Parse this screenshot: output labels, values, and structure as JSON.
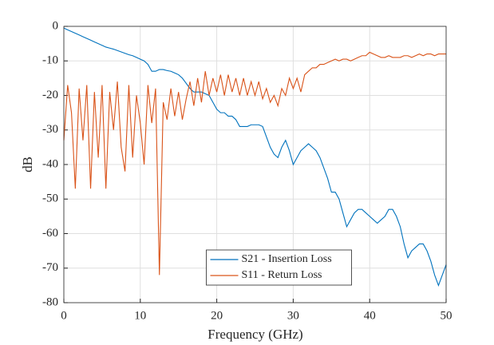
{
  "chart_data": {
    "type": "line",
    "xlabel": "Frequency (GHz)",
    "ylabel": "dB",
    "x": [
      0,
      0.5,
      1,
      1.5,
      2,
      2.5,
      3,
      3.5,
      4,
      4.5,
      5,
      5.5,
      6,
      6.5,
      7,
      7.5,
      8,
      8.5,
      9,
      9.5,
      10,
      10.5,
      11,
      11.5,
      12,
      12.5,
      13,
      13.5,
      14,
      14.5,
      15,
      15.5,
      16,
      16.5,
      17,
      17.5,
      18,
      18.5,
      19,
      19.5,
      20,
      20.5,
      21,
      21.5,
      22,
      22.5,
      23,
      23.5,
      24,
      24.5,
      25,
      25.5,
      26,
      26.5,
      27,
      27.5,
      28,
      28.5,
      29,
      29.5,
      30,
      30.5,
      31,
      31.5,
      32,
      32.5,
      33,
      33.5,
      34,
      34.5,
      35,
      35.5,
      36,
      36.5,
      37,
      37.5,
      38,
      38.5,
      39,
      39.5,
      40,
      40.5,
      41,
      41.5,
      42,
      42.5,
      43,
      43.5,
      44,
      44.5,
      45,
      45.5,
      46,
      46.5,
      47,
      47.5,
      48,
      48.5,
      49,
      49.5,
      50
    ],
    "series": [
      {
        "name": "S21 - Insertion Loss",
        "color": "#0072bd",
        "values": [
          -0.5,
          -1,
          -1.5,
          -2,
          -2.5,
          -3,
          -3.5,
          -4,
          -4.5,
          -5,
          -5.5,
          -6,
          -6.3,
          -6.6,
          -7,
          -7.4,
          -7.8,
          -8.2,
          -8.5,
          -9,
          -9.5,
          -10,
          -11,
          -13,
          -13,
          -12.5,
          -12.5,
          -12.8,
          -13,
          -13.5,
          -14,
          -15,
          -16.5,
          -18,
          -19,
          -19,
          -19,
          -19.5,
          -20,
          -22,
          -24,
          -25,
          -25,
          -26,
          -26,
          -27,
          -29,
          -29,
          -29,
          -28.5,
          -28.5,
          -28.5,
          -29,
          -32,
          -35,
          -37,
          -38,
          -35,
          -33,
          -36,
          -40,
          -38,
          -36,
          -35,
          -34,
          -35,
          -36,
          -38,
          -41,
          -44,
          -48,
          -48,
          -50,
          -54,
          -58,
          -56,
          -54,
          -53,
          -53,
          -54,
          -55,
          -56,
          -57,
          -56,
          -55,
          -53,
          -53,
          -55,
          -58,
          -63,
          -67,
          -65,
          -64,
          -63,
          -63,
          -65,
          -68,
          -72,
          -75,
          -72,
          -69
        ]
      },
      {
        "name": "S11 - Return Loss",
        "color": "#d95319",
        "values": [
          -33,
          -17,
          -25,
          -47,
          -18,
          -33,
          -17,
          -47,
          -19,
          -38,
          -17,
          -47,
          -19,
          -30,
          -16,
          -35,
          -42,
          -17,
          -38,
          -20,
          -28,
          -40,
          -17,
          -28,
          -18,
          -72,
          -22,
          -27,
          -18,
          -26,
          -19,
          -27,
          -21,
          -16,
          -23,
          -15,
          -22,
          -13,
          -20,
          -15,
          -19,
          -14,
          -20,
          -14,
          -19,
          -15,
          -20,
          -15,
          -20,
          -16,
          -20,
          -16,
          -21,
          -18,
          -22,
          -20,
          -23,
          -18,
          -20,
          -15,
          -18,
          -15,
          -19,
          -14,
          -13,
          -12,
          -12,
          -11,
          -11,
          -10.5,
          -10,
          -9.5,
          -10,
          -9.5,
          -9.5,
          -10,
          -9.5,
          -9,
          -8.5,
          -8.5,
          -7.5,
          -8,
          -8.5,
          -9,
          -9,
          -8.5,
          -9,
          -9,
          -9,
          -8.5,
          -8.5,
          -9,
          -8.5,
          -8,
          -8.5,
          -8,
          -8,
          -8.5,
          -8,
          -8,
          -8
        ]
      }
    ],
    "xlim": [
      0,
      50
    ],
    "xticks": [
      0,
      10,
      20,
      30,
      40,
      50
    ],
    "ylim": [
      -80,
      0
    ],
    "yticks": [
      -80,
      -70,
      -60,
      -50,
      -40,
      -30,
      -20,
      -10,
      0
    ],
    "grid": true,
    "legend": "lower center"
  }
}
